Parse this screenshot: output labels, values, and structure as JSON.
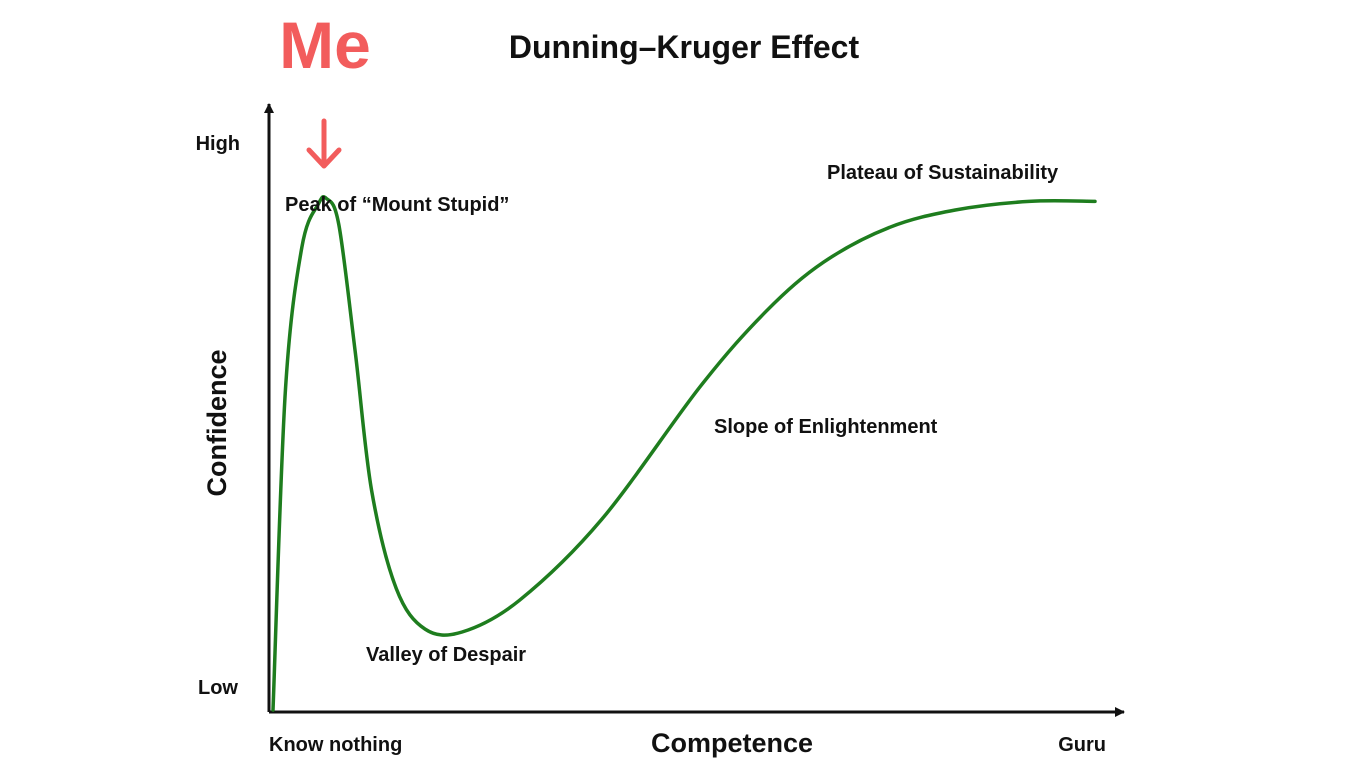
{
  "chart_data": {
    "type": "line",
    "title": "Dunning–Kruger Effect",
    "xlabel": "Competence",
    "ylabel": "Confidence",
    "xlim": [
      0,
      100
    ],
    "ylim": [
      0,
      100
    ],
    "x_tick_labels": {
      "start": "Know nothing",
      "end": "Guru"
    },
    "y_tick_labels": {
      "start": "Low",
      "end": "High"
    },
    "grid": false,
    "legend": "none",
    "series": [
      {
        "color": "#1e7d1e",
        "x": [
          0,
          1.5,
          3.5,
          5.5,
          6.5,
          8,
          10,
          12,
          15,
          18.5,
          23,
          30,
          40,
          52,
          60,
          67,
          75,
          83,
          92,
          100
        ],
        "y": [
          0,
          55,
          80,
          87.5,
          88.5,
          84,
          62,
          38,
          21,
          14,
          13.5,
          19,
          33,
          56,
          69,
          77.5,
          83.5,
          86.5,
          88,
          88
        ]
      }
    ],
    "annotations": [
      {
        "text": "Peak of “Mount Stupid”",
        "x": 6.5,
        "y": 88.5
      },
      {
        "text": "Valley of Despair",
        "x": 18.5,
        "y": 14
      },
      {
        "text": "Slope of Enlightenment",
        "x": 62,
        "y": 70
      },
      {
        "text": "Plateau of Sustainability",
        "x": 88,
        "y": 88
      }
    ],
    "marker": {
      "text": "Me",
      "color": "#f25c5c",
      "points_to_x": 6.5,
      "icon": "down-arrow-icon"
    }
  }
}
